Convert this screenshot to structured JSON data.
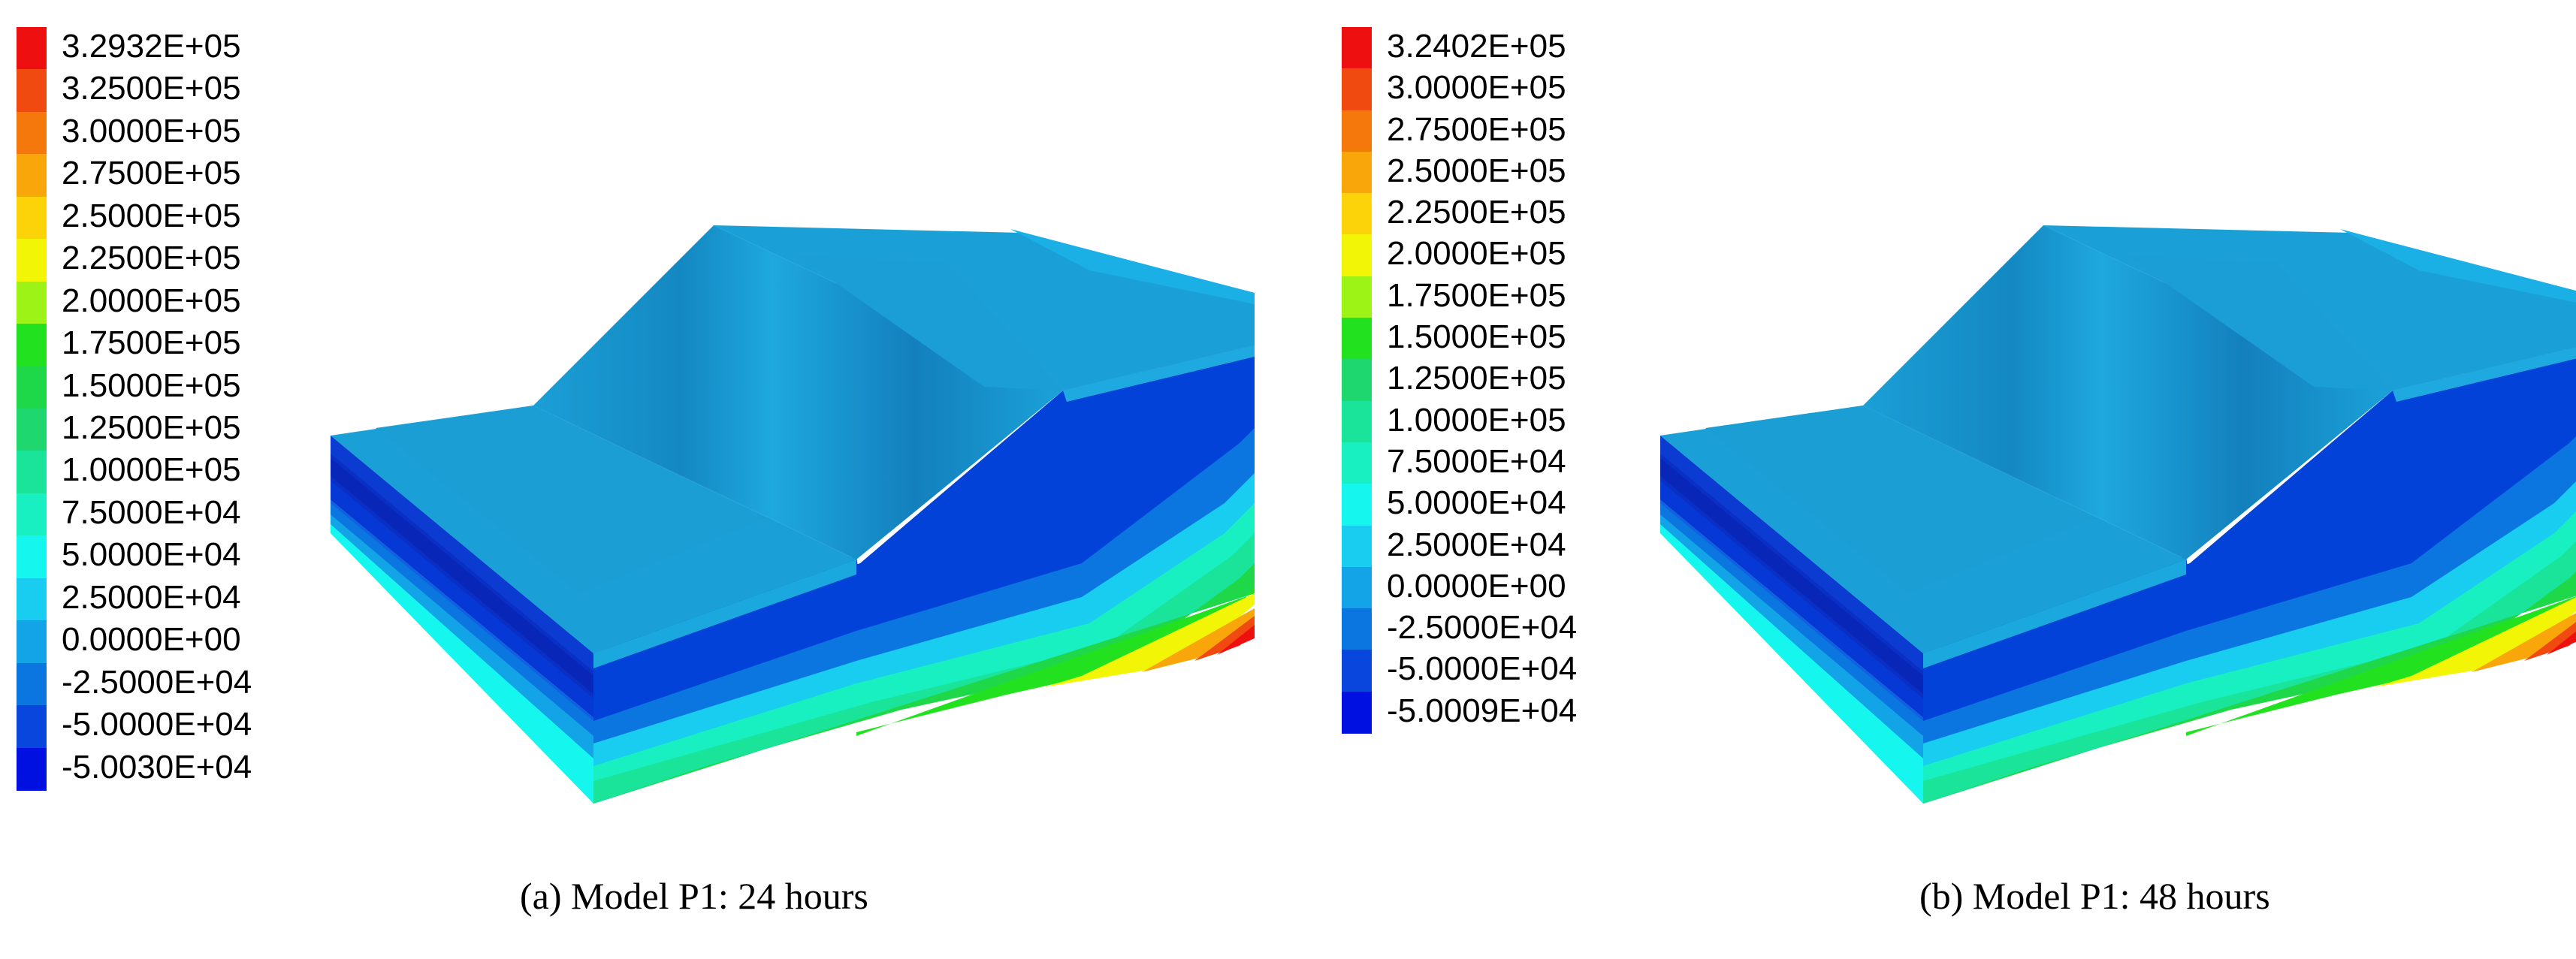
{
  "colors": {
    "scale": [
      "#ee1010",
      "#f04a10",
      "#f5780c",
      "#f9a60a",
      "#fcd308",
      "#f2f505",
      "#9cf315",
      "#22e21f",
      "#1fd84a",
      "#1fd76f",
      "#19e49a",
      "#18f0c2",
      "#15f7ee",
      "#18cdef",
      "#12a4e6",
      "#0b76e0",
      "#0846dd",
      "#0010e0"
    ],
    "surface": "#1aa0d6",
    "surface_dark": "#1580b8",
    "deep_blue": "#0342d8",
    "side": "#1595d2"
  },
  "panels": [
    {
      "caption": "(a) Model P1: 24 hours",
      "legend": [
        "3.2932E+05",
        "3.2500E+05",
        "3.0000E+05",
        "2.7500E+05",
        "2.5000E+05",
        "2.2500E+05",
        "2.0000E+05",
        "1.7500E+05",
        "1.5000E+05",
        "1.2500E+05",
        "1.0000E+05",
        "7.5000E+04",
        "5.0000E+04",
        "2.5000E+04",
        "0.0000E+00",
        "-2.5000E+04",
        "-5.0000E+04",
        "-5.0030E+04"
      ]
    },
    {
      "caption": "(b) Model P1: 48 hours",
      "legend": [
        "3.2402E+05",
        "3.0000E+05",
        "2.7500E+05",
        "2.5000E+05",
        "2.2500E+05",
        "2.0000E+05",
        "1.7500E+05",
        "1.5000E+05",
        "1.2500E+05",
        "1.0000E+05",
        "7.5000E+04",
        "5.0000E+04",
        "2.5000E+04",
        "0.0000E+00",
        "-2.5000E+04",
        "-5.0000E+04",
        "-5.0009E+04"
      ]
    }
  ]
}
